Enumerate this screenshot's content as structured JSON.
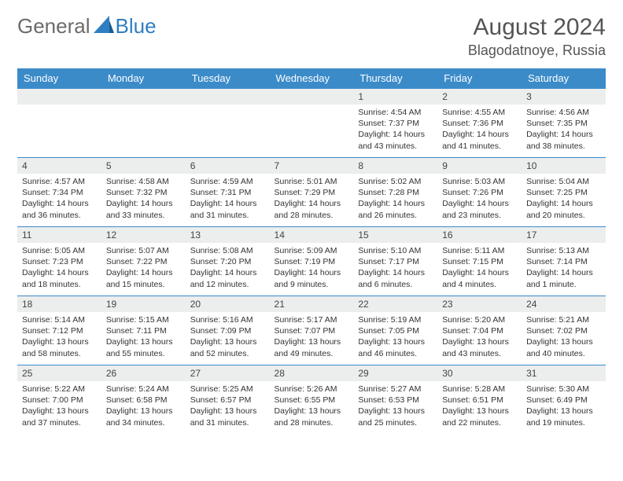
{
  "logo": {
    "word1": "General",
    "word2": "Blue"
  },
  "title": "August 2024",
  "location": "Blagodatnoye, Russia",
  "colors": {
    "header_bg": "#3b8bc9",
    "daynum_bg": "#eceded",
    "row_border": "#3b8bc9",
    "logo_gray": "#6b6b6b",
    "logo_blue": "#2f7ec2"
  },
  "weekdays": [
    "Sunday",
    "Monday",
    "Tuesday",
    "Wednesday",
    "Thursday",
    "Friday",
    "Saturday"
  ],
  "weeks": [
    [
      {
        "empty": true
      },
      {
        "empty": true
      },
      {
        "empty": true
      },
      {
        "empty": true
      },
      {
        "n": "1",
        "sr": "4:54 AM",
        "ss": "7:37 PM",
        "dl": "14 hours and 43 minutes."
      },
      {
        "n": "2",
        "sr": "4:55 AM",
        "ss": "7:36 PM",
        "dl": "14 hours and 41 minutes."
      },
      {
        "n": "3",
        "sr": "4:56 AM",
        "ss": "7:35 PM",
        "dl": "14 hours and 38 minutes."
      }
    ],
    [
      {
        "n": "4",
        "sr": "4:57 AM",
        "ss": "7:34 PM",
        "dl": "14 hours and 36 minutes."
      },
      {
        "n": "5",
        "sr": "4:58 AM",
        "ss": "7:32 PM",
        "dl": "14 hours and 33 minutes."
      },
      {
        "n": "6",
        "sr": "4:59 AM",
        "ss": "7:31 PM",
        "dl": "14 hours and 31 minutes."
      },
      {
        "n": "7",
        "sr": "5:01 AM",
        "ss": "7:29 PM",
        "dl": "14 hours and 28 minutes."
      },
      {
        "n": "8",
        "sr": "5:02 AM",
        "ss": "7:28 PM",
        "dl": "14 hours and 26 minutes."
      },
      {
        "n": "9",
        "sr": "5:03 AM",
        "ss": "7:26 PM",
        "dl": "14 hours and 23 minutes."
      },
      {
        "n": "10",
        "sr": "5:04 AM",
        "ss": "7:25 PM",
        "dl": "14 hours and 20 minutes."
      }
    ],
    [
      {
        "n": "11",
        "sr": "5:05 AM",
        "ss": "7:23 PM",
        "dl": "14 hours and 18 minutes."
      },
      {
        "n": "12",
        "sr": "5:07 AM",
        "ss": "7:22 PM",
        "dl": "14 hours and 15 minutes."
      },
      {
        "n": "13",
        "sr": "5:08 AM",
        "ss": "7:20 PM",
        "dl": "14 hours and 12 minutes."
      },
      {
        "n": "14",
        "sr": "5:09 AM",
        "ss": "7:19 PM",
        "dl": "14 hours and 9 minutes."
      },
      {
        "n": "15",
        "sr": "5:10 AM",
        "ss": "7:17 PM",
        "dl": "14 hours and 6 minutes."
      },
      {
        "n": "16",
        "sr": "5:11 AM",
        "ss": "7:15 PM",
        "dl": "14 hours and 4 minutes."
      },
      {
        "n": "17",
        "sr": "5:13 AM",
        "ss": "7:14 PM",
        "dl": "14 hours and 1 minute."
      }
    ],
    [
      {
        "n": "18",
        "sr": "5:14 AM",
        "ss": "7:12 PM",
        "dl": "13 hours and 58 minutes."
      },
      {
        "n": "19",
        "sr": "5:15 AM",
        "ss": "7:11 PM",
        "dl": "13 hours and 55 minutes."
      },
      {
        "n": "20",
        "sr": "5:16 AM",
        "ss": "7:09 PM",
        "dl": "13 hours and 52 minutes."
      },
      {
        "n": "21",
        "sr": "5:17 AM",
        "ss": "7:07 PM",
        "dl": "13 hours and 49 minutes."
      },
      {
        "n": "22",
        "sr": "5:19 AM",
        "ss": "7:05 PM",
        "dl": "13 hours and 46 minutes."
      },
      {
        "n": "23",
        "sr": "5:20 AM",
        "ss": "7:04 PM",
        "dl": "13 hours and 43 minutes."
      },
      {
        "n": "24",
        "sr": "5:21 AM",
        "ss": "7:02 PM",
        "dl": "13 hours and 40 minutes."
      }
    ],
    [
      {
        "n": "25",
        "sr": "5:22 AM",
        "ss": "7:00 PM",
        "dl": "13 hours and 37 minutes."
      },
      {
        "n": "26",
        "sr": "5:24 AM",
        "ss": "6:58 PM",
        "dl": "13 hours and 34 minutes."
      },
      {
        "n": "27",
        "sr": "5:25 AM",
        "ss": "6:57 PM",
        "dl": "13 hours and 31 minutes."
      },
      {
        "n": "28",
        "sr": "5:26 AM",
        "ss": "6:55 PM",
        "dl": "13 hours and 28 minutes."
      },
      {
        "n": "29",
        "sr": "5:27 AM",
        "ss": "6:53 PM",
        "dl": "13 hours and 25 minutes."
      },
      {
        "n": "30",
        "sr": "5:28 AM",
        "ss": "6:51 PM",
        "dl": "13 hours and 22 minutes."
      },
      {
        "n": "31",
        "sr": "5:30 AM",
        "ss": "6:49 PM",
        "dl": "13 hours and 19 minutes."
      }
    ]
  ],
  "labels": {
    "sunrise": "Sunrise: ",
    "sunset": "Sunset: ",
    "daylight": "Daylight: "
  }
}
